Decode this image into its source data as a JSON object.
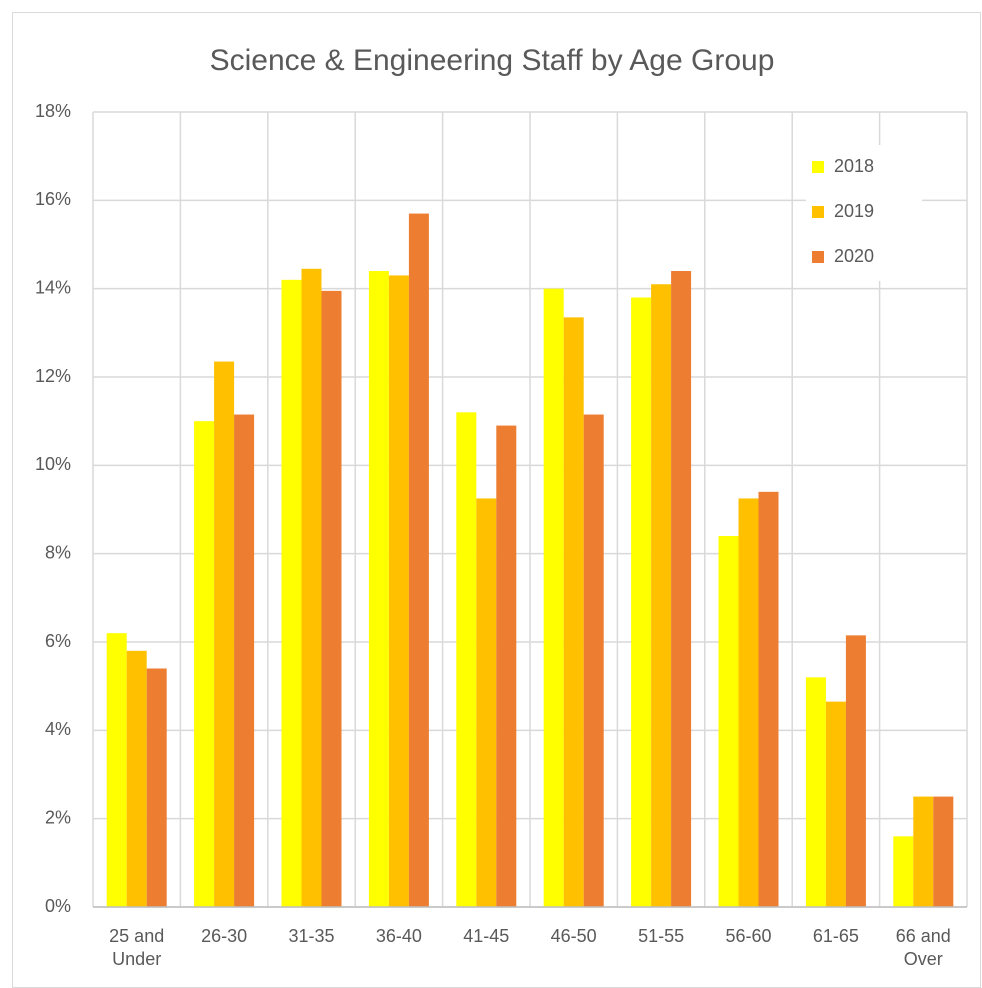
{
  "chart_data": {
    "type": "bar",
    "title": "Science & Engineering Staff by Age Group",
    "categories": [
      "25 and Under",
      "26-30",
      "31-35",
      "36-40",
      "41-45",
      "46-50",
      "51-55",
      "56-60",
      "61-65",
      "66 and Over"
    ],
    "series": [
      {
        "name": "2018",
        "color": "#ffff00",
        "values": [
          6.2,
          11.0,
          14.2,
          14.4,
          11.2,
          14.0,
          13.8,
          8.4,
          5.2,
          1.6
        ]
      },
      {
        "name": "2019",
        "color": "#ffc000",
        "values": [
          5.8,
          12.35,
          14.45,
          14.3,
          9.25,
          13.35,
          14.1,
          9.25,
          4.65,
          2.5
        ]
      },
      {
        "name": "2020",
        "color": "#ed7d31",
        "values": [
          5.4,
          11.15,
          13.95,
          15.7,
          10.9,
          11.15,
          14.4,
          9.4,
          6.15,
          2.5
        ]
      }
    ],
    "ylim": [
      0,
      18
    ],
    "yticks": [
      {
        "value": 0,
        "label": "0%"
      },
      {
        "value": 2,
        "label": "2%"
      },
      {
        "value": 4,
        "label": "4%"
      },
      {
        "value": 6,
        "label": "6%"
      },
      {
        "value": 8,
        "label": "8%"
      },
      {
        "value": 10,
        "label": "10%"
      },
      {
        "value": 12,
        "label": "12%"
      },
      {
        "value": 14,
        "label": "14%"
      },
      {
        "value": 16,
        "label": "16%"
      },
      {
        "value": 18,
        "label": "18%"
      }
    ],
    "grid": true,
    "legend": "top-right"
  }
}
